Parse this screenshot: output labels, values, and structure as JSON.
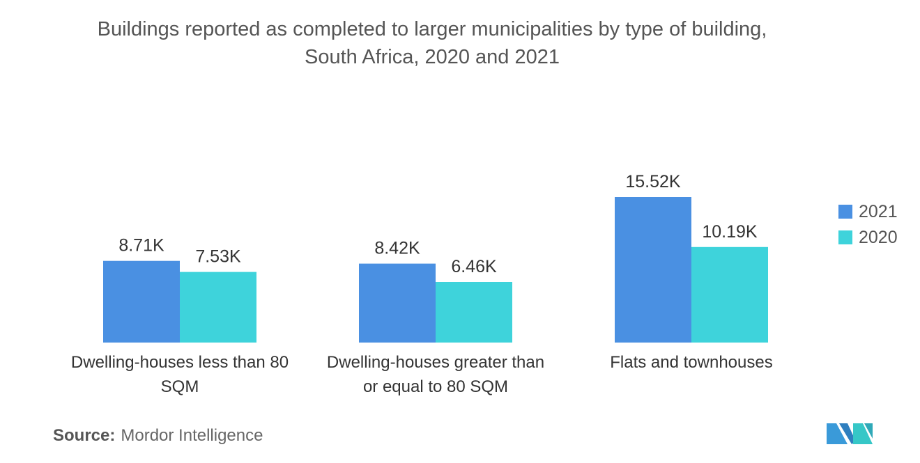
{
  "title_line1": "Buildings reported as completed to larger municipalities by type of building,",
  "title_line2": "South Africa, 2020 and 2021",
  "source_label": "Source:",
  "source_text": "Mordor Intelligence",
  "chart_data": {
    "type": "bar",
    "title": "Buildings reported as completed to larger municipalities by type of building, South Africa, 2020 and 2021",
    "categories": [
      [
        "Dwelling-houses less than 80",
        "SQM"
      ],
      [
        "Dwelling-houses greater than",
        "or equal to 80 SQM"
      ],
      [
        "Flats and townhouses"
      ]
    ],
    "series": [
      {
        "name": "2021",
        "color": "#4A90E2",
        "values": [
          8.71,
          8.42,
          15.52
        ],
        "labels": [
          "8.71K",
          "8.42K",
          "15.52K"
        ]
      },
      {
        "name": "2020",
        "color": "#3ED3DB",
        "values": [
          7.53,
          6.46,
          10.19
        ],
        "labels": [
          "7.53K",
          "6.46K",
          "10.19K"
        ]
      }
    ],
    "value_unit": "K",
    "legend_position": "right",
    "grid": false,
    "ylim": [
      0,
      15.52
    ]
  },
  "logo_icon": "mordor-intelligence-logo"
}
